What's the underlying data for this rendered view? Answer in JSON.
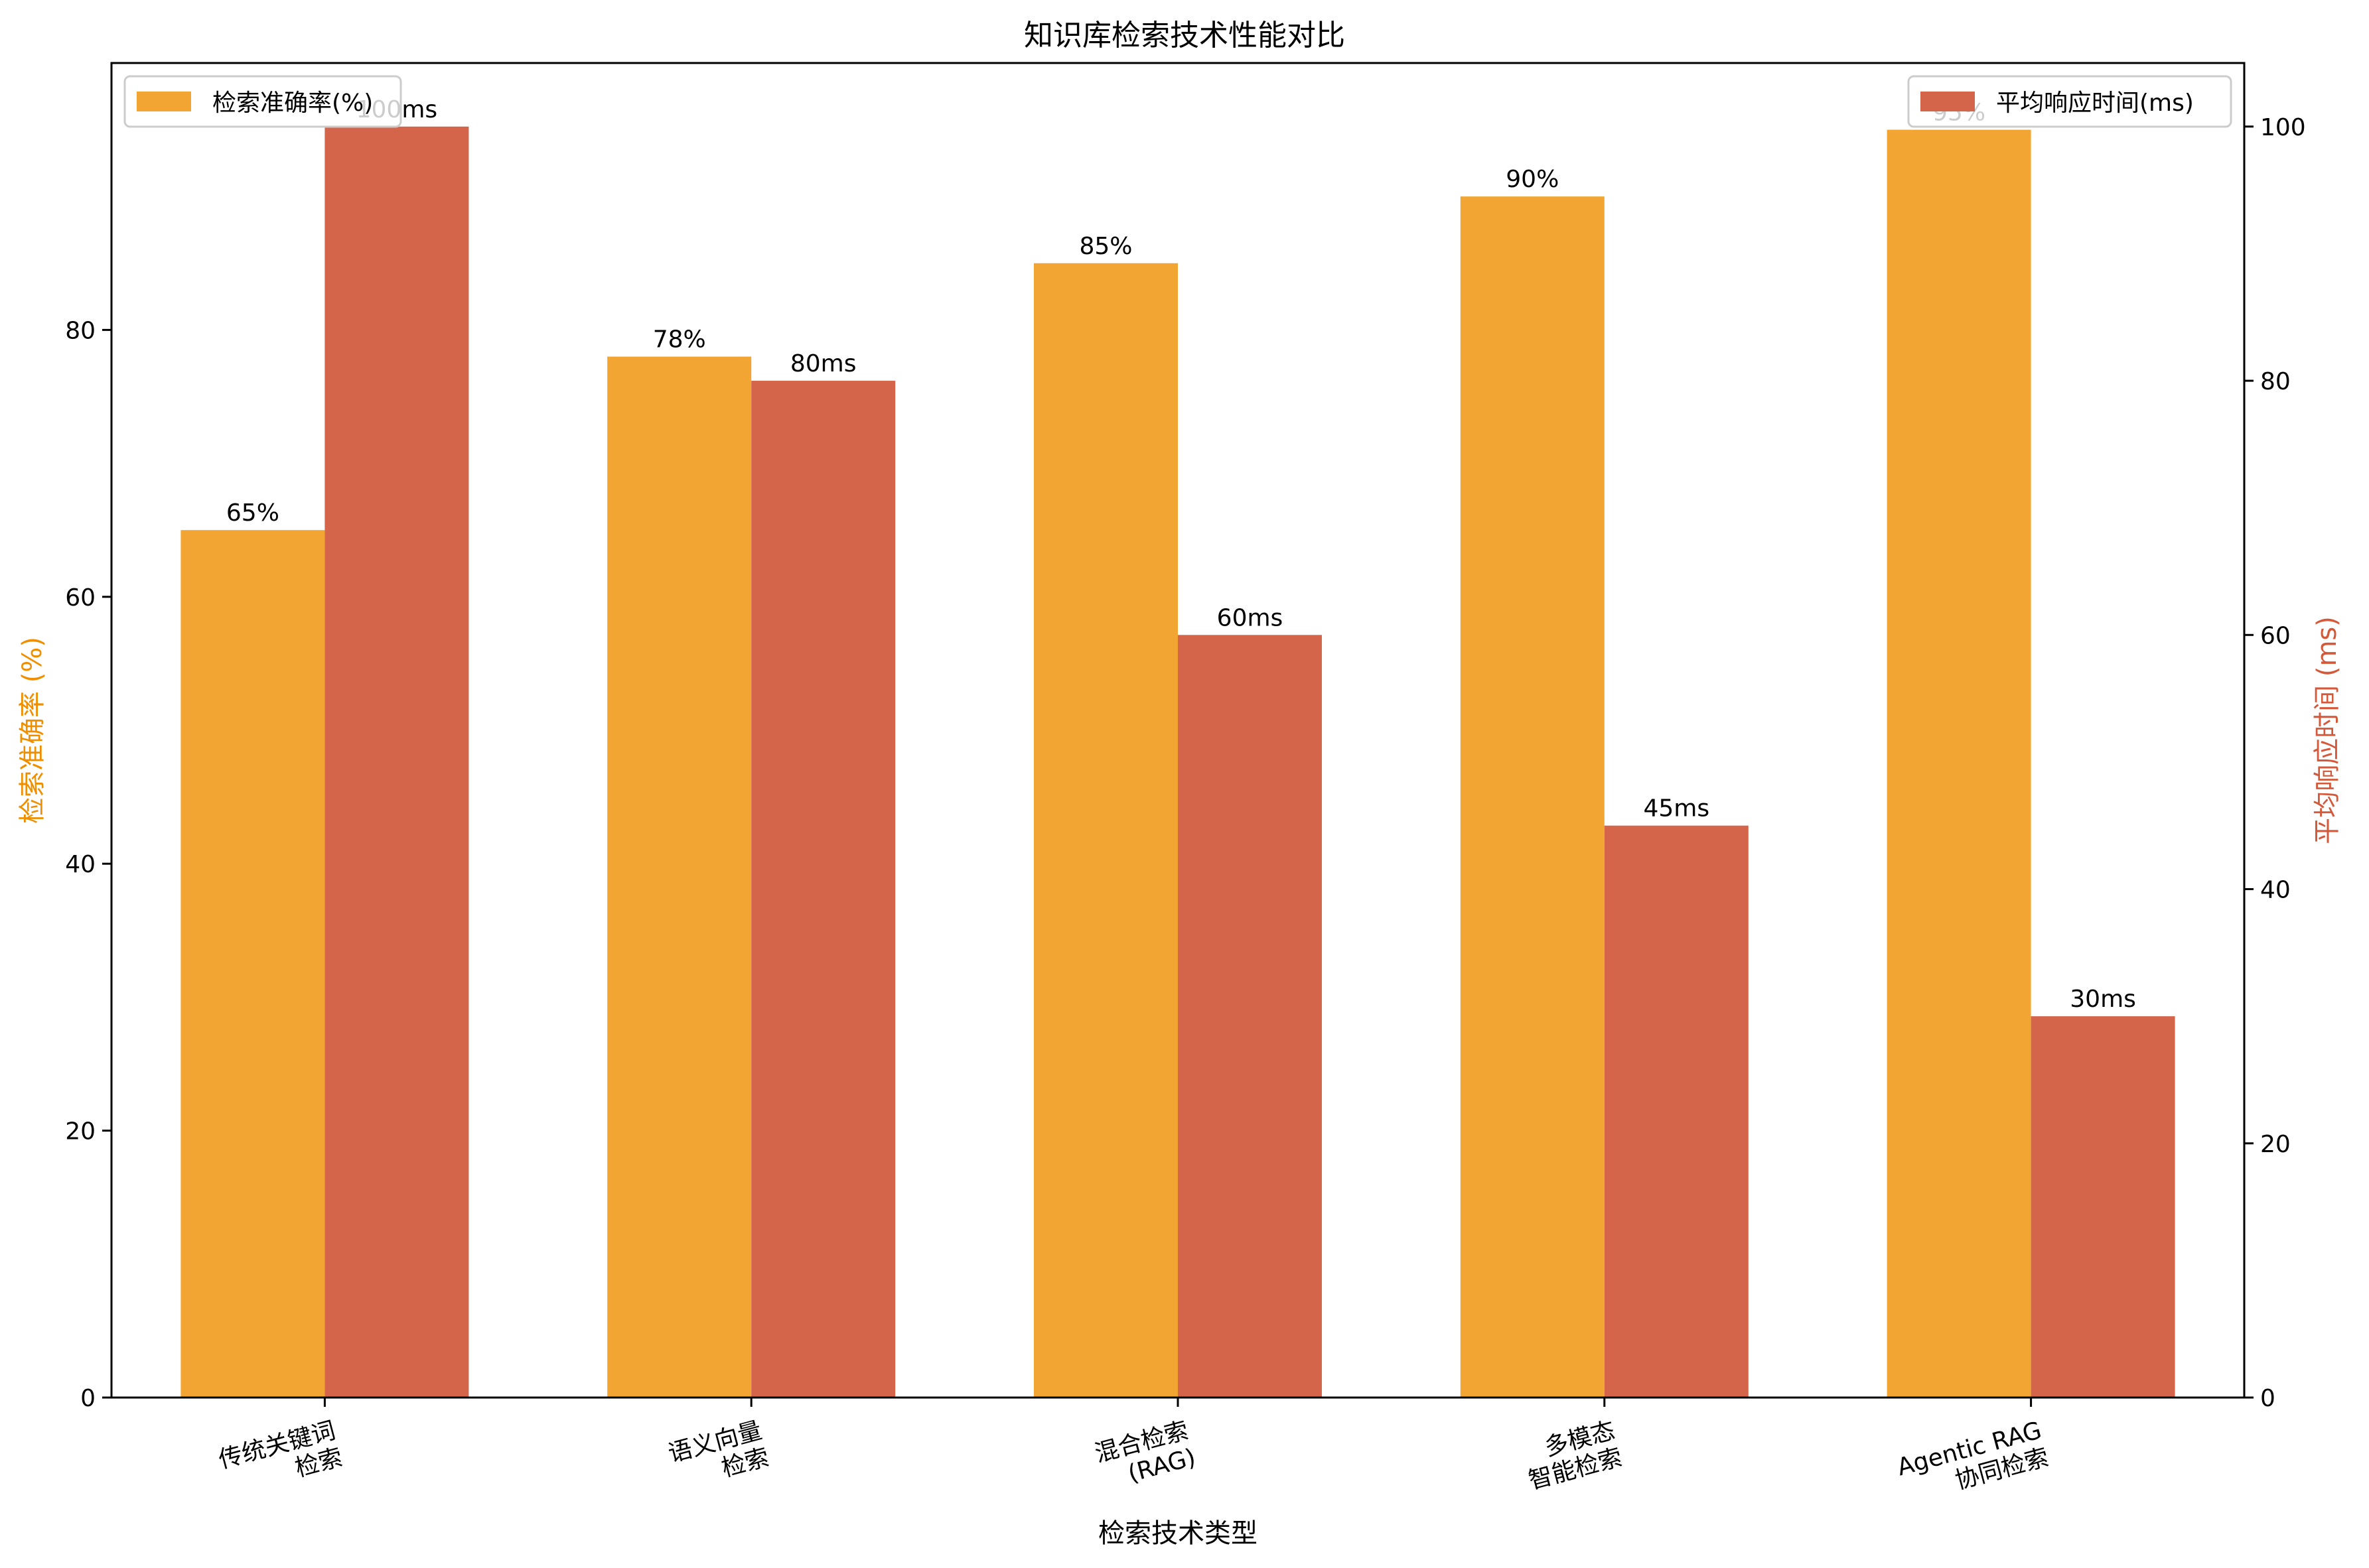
{
  "chart_data": {
    "type": "bar",
    "title": "知识库检索技术性能对比",
    "xlabel": "检索技术类型",
    "categories": [
      [
        "传统关键词",
        "检索"
      ],
      [
        "语义向量",
        "检索"
      ],
      [
        "混合检索",
        "(RAG)"
      ],
      [
        "多模态",
        "智能检索"
      ],
      [
        "Agentic RAG",
        "协同检索"
      ]
    ],
    "y_left": {
      "label": "检索准确率 (%)",
      "lim": [
        0,
        100
      ],
      "ticks": [
        0,
        20,
        40,
        60,
        80
      ],
      "color": "#ef8f00"
    },
    "y_right": {
      "label": "平均响应时间 (ms)",
      "lim": [
        0,
        105
      ],
      "ticks": [
        0,
        20,
        40,
        60,
        80,
        100
      ],
      "color": "#d4583a"
    },
    "series": [
      {
        "name": "检索准确率(%)",
        "axis": "left",
        "color": "#f2a533",
        "values": [
          65,
          78,
          85,
          90,
          95
        ],
        "labels": [
          "65%",
          "78%",
          "85%",
          "90%",
          "95%"
        ]
      },
      {
        "name": "平均响应时间(ms)",
        "axis": "right",
        "color": "#d4654a",
        "values": [
          100,
          80,
          60,
          45,
          30
        ],
        "labels": [
          "100ms",
          "80ms",
          "60ms",
          "45ms",
          "30ms"
        ]
      }
    ],
    "legend": [
      "top-left",
      "top-right"
    ],
    "grid": false
  }
}
